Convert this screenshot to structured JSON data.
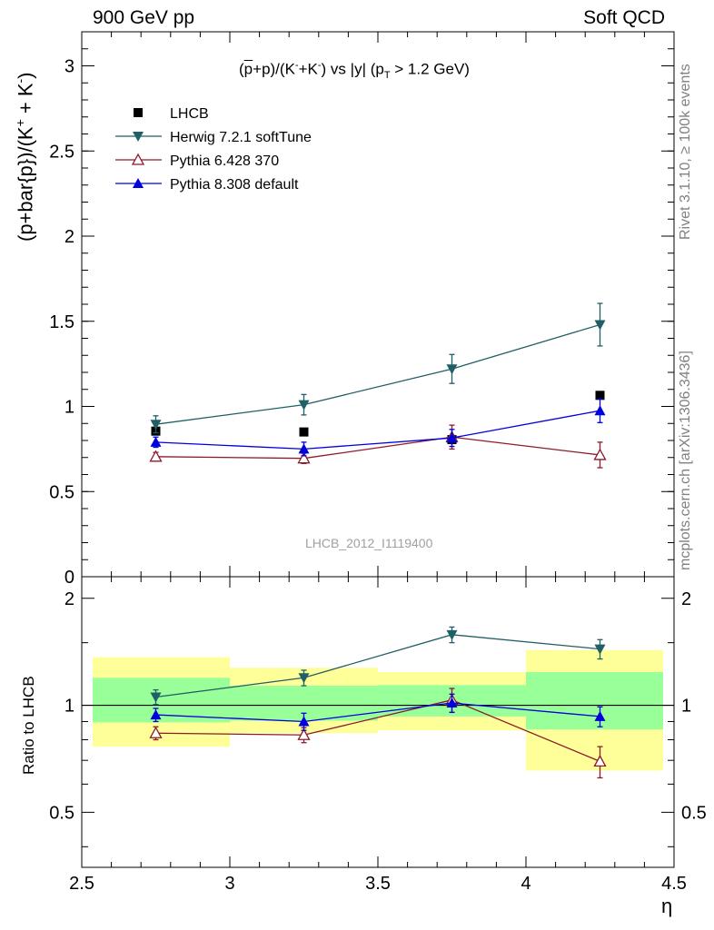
{
  "header": {
    "left": "900 GeV pp",
    "right": "Soft QCD"
  },
  "side_labels": {
    "rivet": "Rivet 3.1.10, ≥ 100k events",
    "mcplots": "mcplots.cern.ch [arXiv:1306.3436]"
  },
  "watermark": "LHCB_2012_I1119400",
  "chart_data": [
    {
      "type": "line",
      "title": "(p̅+p)/(K⁻+K⁻) vs |y| (p_T > 1.2 GeV)",
      "ylabel": "(p+bar{p})/(K⁺ + K⁻)",
      "xlabel": "η",
      "xlim": [
        2.5,
        4.5
      ],
      "ylim": [
        0,
        3.2
      ],
      "x_ticks": [
        "2.5",
        "3",
        "3.5",
        "4",
        "4.5"
      ],
      "y_ticks": [
        "0",
        "0.5",
        "1",
        "1.5",
        "2",
        "2.5",
        "3"
      ],
      "legend_position": "top-left",
      "series": [
        {
          "name": "LHCB",
          "color": "#000000",
          "marker": "square",
          "line": false,
          "x": [
            2.75,
            3.25,
            3.75,
            4.25
          ],
          "y": [
            0.855,
            0.85,
            0.805,
            1.065
          ],
          "err": [
            0.0,
            0.0,
            0.0,
            0.0
          ]
        },
        {
          "name": "Herwig 7.2.1 softTune",
          "color": "#1f5f66",
          "marker": "triangle-down",
          "line": true,
          "x": [
            2.75,
            3.25,
            3.75,
            4.25
          ],
          "y": [
            0.895,
            1.01,
            1.22,
            1.48
          ],
          "err": [
            0.05,
            0.06,
            0.085,
            0.125
          ]
        },
        {
          "name": "Pythia 6.428 370",
          "color": "#8b1a2a",
          "marker": "triangle-up-open",
          "line": true,
          "x": [
            2.75,
            3.25,
            3.75,
            4.25
          ],
          "y": [
            0.705,
            0.695,
            0.82,
            0.715
          ],
          "err": [
            0.025,
            0.03,
            0.07,
            0.075
          ]
        },
        {
          "name": "Pythia 8.308 default",
          "color": "#0000dd",
          "marker": "triangle-up",
          "line": true,
          "x": [
            2.75,
            3.25,
            3.75,
            4.25
          ],
          "y": [
            0.79,
            0.75,
            0.815,
            0.975
          ],
          "err": [
            0.03,
            0.04,
            0.05,
            0.07
          ]
        }
      ]
    },
    {
      "type": "line",
      "ylabel": "Ratio to LHCB",
      "xlabel": "η",
      "xlim": [
        2.5,
        4.5
      ],
      "ylim": [
        0.35,
        2.3
      ],
      "x_ticks": [
        "2.5",
        "3",
        "3.5",
        "4",
        "4.5"
      ],
      "y_ticks": [
        "0.5",
        "1",
        "2"
      ],
      "y_tick_values": [
        0.5,
        1,
        2
      ],
      "reference_line": 1,
      "bands": [
        {
          "x": [
            2.5,
            3.0
          ],
          "outer": [
            0.765,
            1.365
          ],
          "inner": [
            0.895,
            1.195
          ]
        },
        {
          "x": [
            3.0,
            3.5
          ],
          "outer": [
            0.835,
            1.275
          ],
          "inner": [
            0.905,
            1.135
          ]
        },
        {
          "x": [
            3.5,
            4.0
          ],
          "outer": [
            0.85,
            1.24
          ],
          "inner": [
            0.93,
            1.14
          ]
        },
        {
          "x": [
            4.0,
            4.5
          ],
          "outer": [
            0.655,
            1.43
          ],
          "inner": [
            0.855,
            1.24
          ]
        }
      ],
      "series": [
        {
          "name": "Herwig 7.2.1 softTune",
          "color": "#1f5f66",
          "marker": "triangle-down",
          "x": [
            2.75,
            3.25,
            3.75,
            4.25
          ],
          "y": [
            1.055,
            1.195,
            1.58,
            1.44
          ],
          "err": [
            0.05,
            0.06,
            0.08,
            0.09
          ]
        },
        {
          "name": "Pythia 6.428 370",
          "color": "#8b1a2a",
          "marker": "triangle-up-open",
          "x": [
            2.75,
            3.25,
            3.75,
            4.25
          ],
          "y": [
            0.835,
            0.825,
            1.035,
            0.695
          ],
          "err": [
            0.035,
            0.04,
            0.08,
            0.07
          ]
        },
        {
          "name": "Pythia 8.308 default",
          "color": "#0000dd",
          "marker": "triangle-up",
          "x": [
            2.75,
            3.25,
            3.75,
            4.25
          ],
          "y": [
            0.94,
            0.9,
            1.015,
            0.93
          ],
          "err": [
            0.04,
            0.05,
            0.06,
            0.06
          ]
        }
      ],
      "band_colors": {
        "outer": "#ffff99",
        "inner": "#99ff99"
      }
    }
  ]
}
